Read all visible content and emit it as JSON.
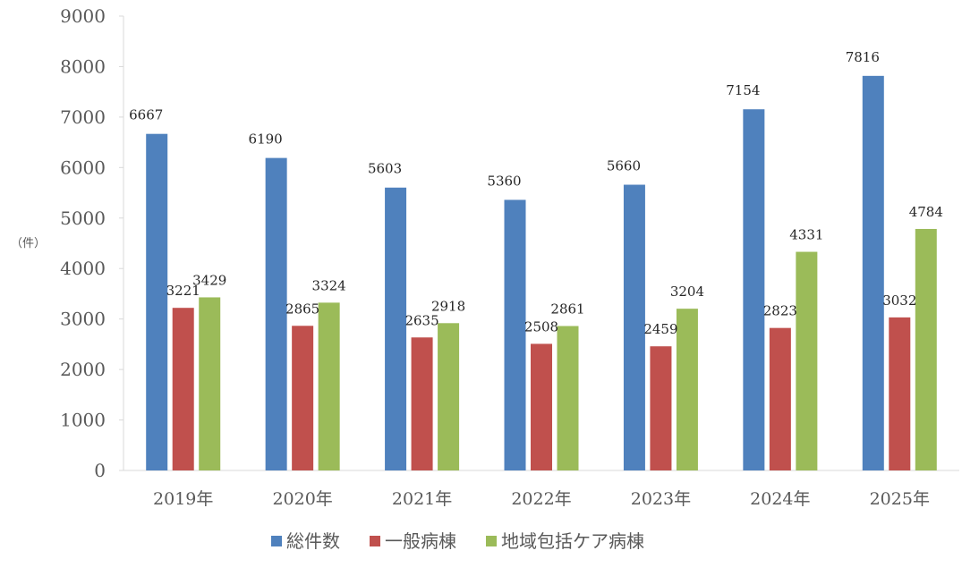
{
  "chart_data": {
    "type": "bar",
    "title": "",
    "ylabel": "（件）",
    "xlabel": "",
    "ylim": [
      0,
      9000
    ],
    "yticks": [
      0,
      1000,
      2000,
      3000,
      4000,
      5000,
      6000,
      7000,
      8000,
      9000
    ],
    "grid": false,
    "legend_position": "bottom",
    "categories": [
      "2019年",
      "2020年",
      "2021年",
      "2022年",
      "2023年",
      "2024年",
      "2025年"
    ],
    "series": [
      {
        "name": "総件数",
        "color": "#4F81BD",
        "values": [
          6667,
          6190,
          5603,
          5360,
          5660,
          7154,
          7816
        ]
      },
      {
        "name": "一般病棟",
        "color": "#C0504D",
        "values": [
          3221,
          2865,
          2635,
          2508,
          2459,
          2823,
          3032
        ]
      },
      {
        "name": "地域包括ケア病棟",
        "color": "#9BBB59",
        "values": [
          3429,
          3324,
          2918,
          2861,
          3204,
          4331,
          4784
        ]
      }
    ]
  }
}
